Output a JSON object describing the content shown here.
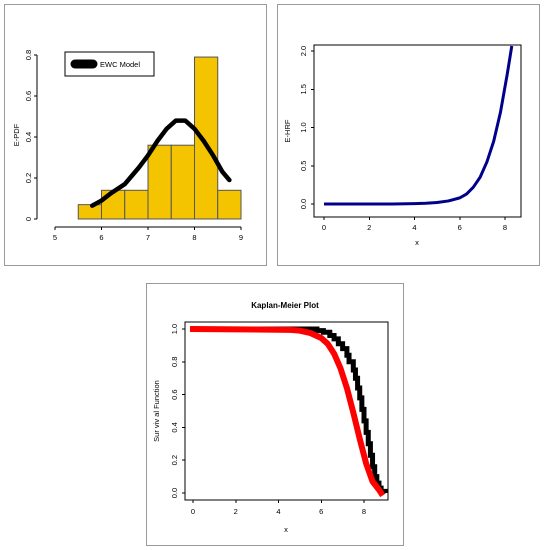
{
  "chart_data": [
    {
      "type": "bar",
      "title": "",
      "xlabel": "",
      "ylabel": "E-PDF",
      "xlim": [
        5,
        9
      ],
      "ylim": [
        0,
        0.8
      ],
      "x_ticks": [
        "5",
        "6",
        "7",
        "8",
        "9"
      ],
      "y_ticks": [
        "0",
        "0.2",
        "0.4",
        "0.6",
        "0.8"
      ],
      "bin_edges": [
        5.5,
        6.0,
        6.5,
        7.0,
        7.5,
        8.0,
        8.5,
        9.0
      ],
      "values": [
        0.07,
        0.14,
        0.14,
        0.36,
        0.36,
        0.79,
        0.14
      ],
      "bar_color": "#f5c400",
      "series": [
        {
          "name": "EWC Model",
          "type": "line",
          "color": "#000000",
          "x": [
            5.8,
            6.0,
            6.2,
            6.5,
            6.8,
            7.0,
            7.2,
            7.4,
            7.6,
            7.8,
            8.0,
            8.2,
            8.4,
            8.6,
            8.75
          ],
          "y": [
            0.065,
            0.09,
            0.125,
            0.17,
            0.25,
            0.31,
            0.38,
            0.44,
            0.48,
            0.48,
            0.44,
            0.38,
            0.31,
            0.23,
            0.19
          ]
        }
      ],
      "legend": {
        "position": "top-left",
        "entries": [
          "EWC Model"
        ]
      }
    },
    {
      "type": "line",
      "title": "",
      "xlabel": "x",
      "ylabel": "E-HRF",
      "xlim": [
        0,
        8.5
      ],
      "ylim": [
        0,
        2.0
      ],
      "x_ticks": [
        "0",
        "2",
        "4",
        "6",
        "8"
      ],
      "y_ticks": [
        "0.0",
        "0.5",
        "1.0",
        "1.5",
        "2.0"
      ],
      "series": [
        {
          "color": "#00008b",
          "x": [
            0,
            1,
            2,
            3,
            4,
            4.5,
            5,
            5.5,
            6,
            6.3,
            6.6,
            6.9,
            7.2,
            7.5,
            7.8,
            8.1,
            8.3
          ],
          "y": [
            0,
            0,
            0,
            0,
            0.005,
            0.01,
            0.02,
            0.04,
            0.08,
            0.13,
            0.22,
            0.35,
            0.55,
            0.82,
            1.2,
            1.7,
            2.1
          ]
        }
      ]
    },
    {
      "type": "line",
      "title": "Kaplan-Meier Plot",
      "xlabel": "x",
      "ylabel": "Sur viv al Function",
      "xlim": [
        0,
        9
      ],
      "ylim": [
        0,
        1.0
      ],
      "x_ticks": [
        "0",
        "2",
        "4",
        "6",
        "8"
      ],
      "y_ticks": [
        "0.0",
        "0.2",
        "0.4",
        "0.6",
        "0.8",
        "1.0"
      ],
      "series": [
        {
          "color": "#000000",
          "step": true,
          "x": [
            0,
            5.8,
            6.1,
            6.4,
            6.6,
            6.8,
            7.0,
            7.2,
            7.3,
            7.5,
            7.6,
            7.7,
            7.8,
            7.9,
            8.0,
            8.1,
            8.2,
            8.3,
            8.4,
            8.5,
            8.6,
            8.7,
            8.8,
            9.0
          ],
          "y": [
            1.0,
            0.99,
            0.98,
            0.96,
            0.94,
            0.91,
            0.88,
            0.84,
            0.8,
            0.75,
            0.7,
            0.64,
            0.58,
            0.51,
            0.44,
            0.37,
            0.3,
            0.23,
            0.16,
            0.1,
            0.06,
            0.03,
            0.01,
            0.0
          ]
        },
        {
          "color": "#ff0000",
          "x": [
            0,
            4.5,
            5.0,
            5.5,
            6.0,
            6.3,
            6.6,
            6.9,
            7.2,
            7.5,
            7.8,
            8.1,
            8.4,
            8.7,
            8.8
          ],
          "y": [
            1.0,
            0.995,
            0.99,
            0.975,
            0.945,
            0.91,
            0.85,
            0.76,
            0.64,
            0.49,
            0.33,
            0.18,
            0.07,
            0.02,
            0.0
          ]
        }
      ]
    }
  ]
}
